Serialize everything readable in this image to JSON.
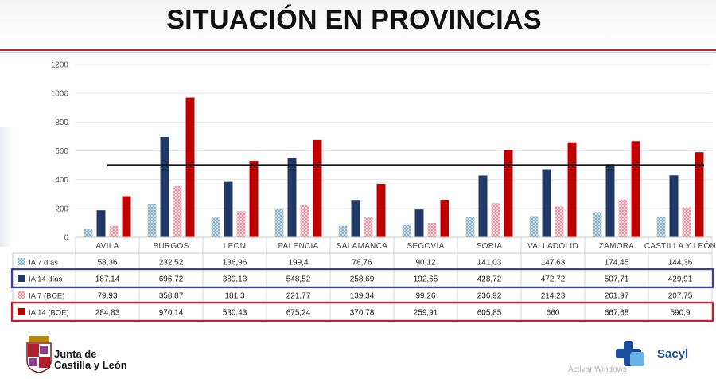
{
  "page": {
    "title": "SITUACIÓN EN PROVINCIAS",
    "logo_text_line1": "Junta de",
    "logo_text_line2": "Castilla y León",
    "brand_right": "Sacyl",
    "watermark": "Activar Windows",
    "colors": {
      "title_rule_red": "#c8202c",
      "title_rule_blue": "#2e5fa8"
    }
  },
  "chart_data": {
    "type": "bar",
    "title": "",
    "xlabel": "",
    "ylabel": "",
    "ylim": [
      0,
      1200
    ],
    "yticks": [
      "0",
      "200",
      "400",
      "600",
      "800",
      "1000",
      "1200"
    ],
    "grid": true,
    "reference_line": 500,
    "categories": [
      "AVILA",
      "BURGOS",
      "LEON",
      "PALENCIA",
      "SALAMANCA",
      "SEGOVIA",
      "SORIA",
      "VALLADOLID",
      "ZAMORA",
      "CASTILLA Y LEÓN"
    ],
    "series": [
      {
        "name": "IA 7 días",
        "color": "#8fb4c8",
        "pattern": "dotted",
        "values": [
          58.36,
          232.52,
          136.96,
          199.4,
          78.76,
          90.12,
          141.03,
          147.63,
          174.45,
          144.36
        ],
        "labels": [
          "58,36",
          "232,52",
          "136,96",
          "199,4",
          "78,76",
          "90,12",
          "141,03",
          "147,63",
          "174,45",
          "144,36"
        ]
      },
      {
        "name": "IA 14 días",
        "color": "#1f3864",
        "pattern": "solid",
        "values": [
          187.14,
          696.72,
          389.13,
          548.52,
          258.69,
          192.65,
          428.72,
          472.72,
          507.71,
          429.91
        ],
        "labels": [
          "187,14",
          "696,72",
          "389,13",
          "548,52",
          "258,69",
          "192,65",
          "428,72",
          "472,72",
          "507,71",
          "429,91"
        ]
      },
      {
        "name": "IA 7 (BOE)",
        "color": "#e59aa7",
        "pattern": "dotted",
        "values": [
          79.93,
          358.87,
          181.3,
          221.77,
          139.34,
          99.26,
          236.92,
          214.23,
          261.97,
          207.75
        ],
        "labels": [
          "79,93",
          "358,87",
          "181,3",
          "221,77",
          "139,34",
          "99,26",
          "236,92",
          "214,23",
          "261,97",
          "207,75"
        ]
      },
      {
        "name": "IA 14 (BOE)",
        "color": "#c00000",
        "pattern": "solid",
        "values": [
          284.83,
          970.14,
          530.43,
          675.24,
          370.78,
          259.91,
          605.85,
          660,
          667.68,
          590.9
        ],
        "labels": [
          "284,83",
          "970,14",
          "530,43",
          "675,24",
          "370,78",
          "259,91",
          "605,85",
          "660",
          "667,68",
          "590,9"
        ]
      }
    ],
    "highlighted_rows": [
      {
        "series_index": 1,
        "color": "#3a3ea8"
      },
      {
        "series_index": 3,
        "color": "#d0192a"
      }
    ]
  }
}
